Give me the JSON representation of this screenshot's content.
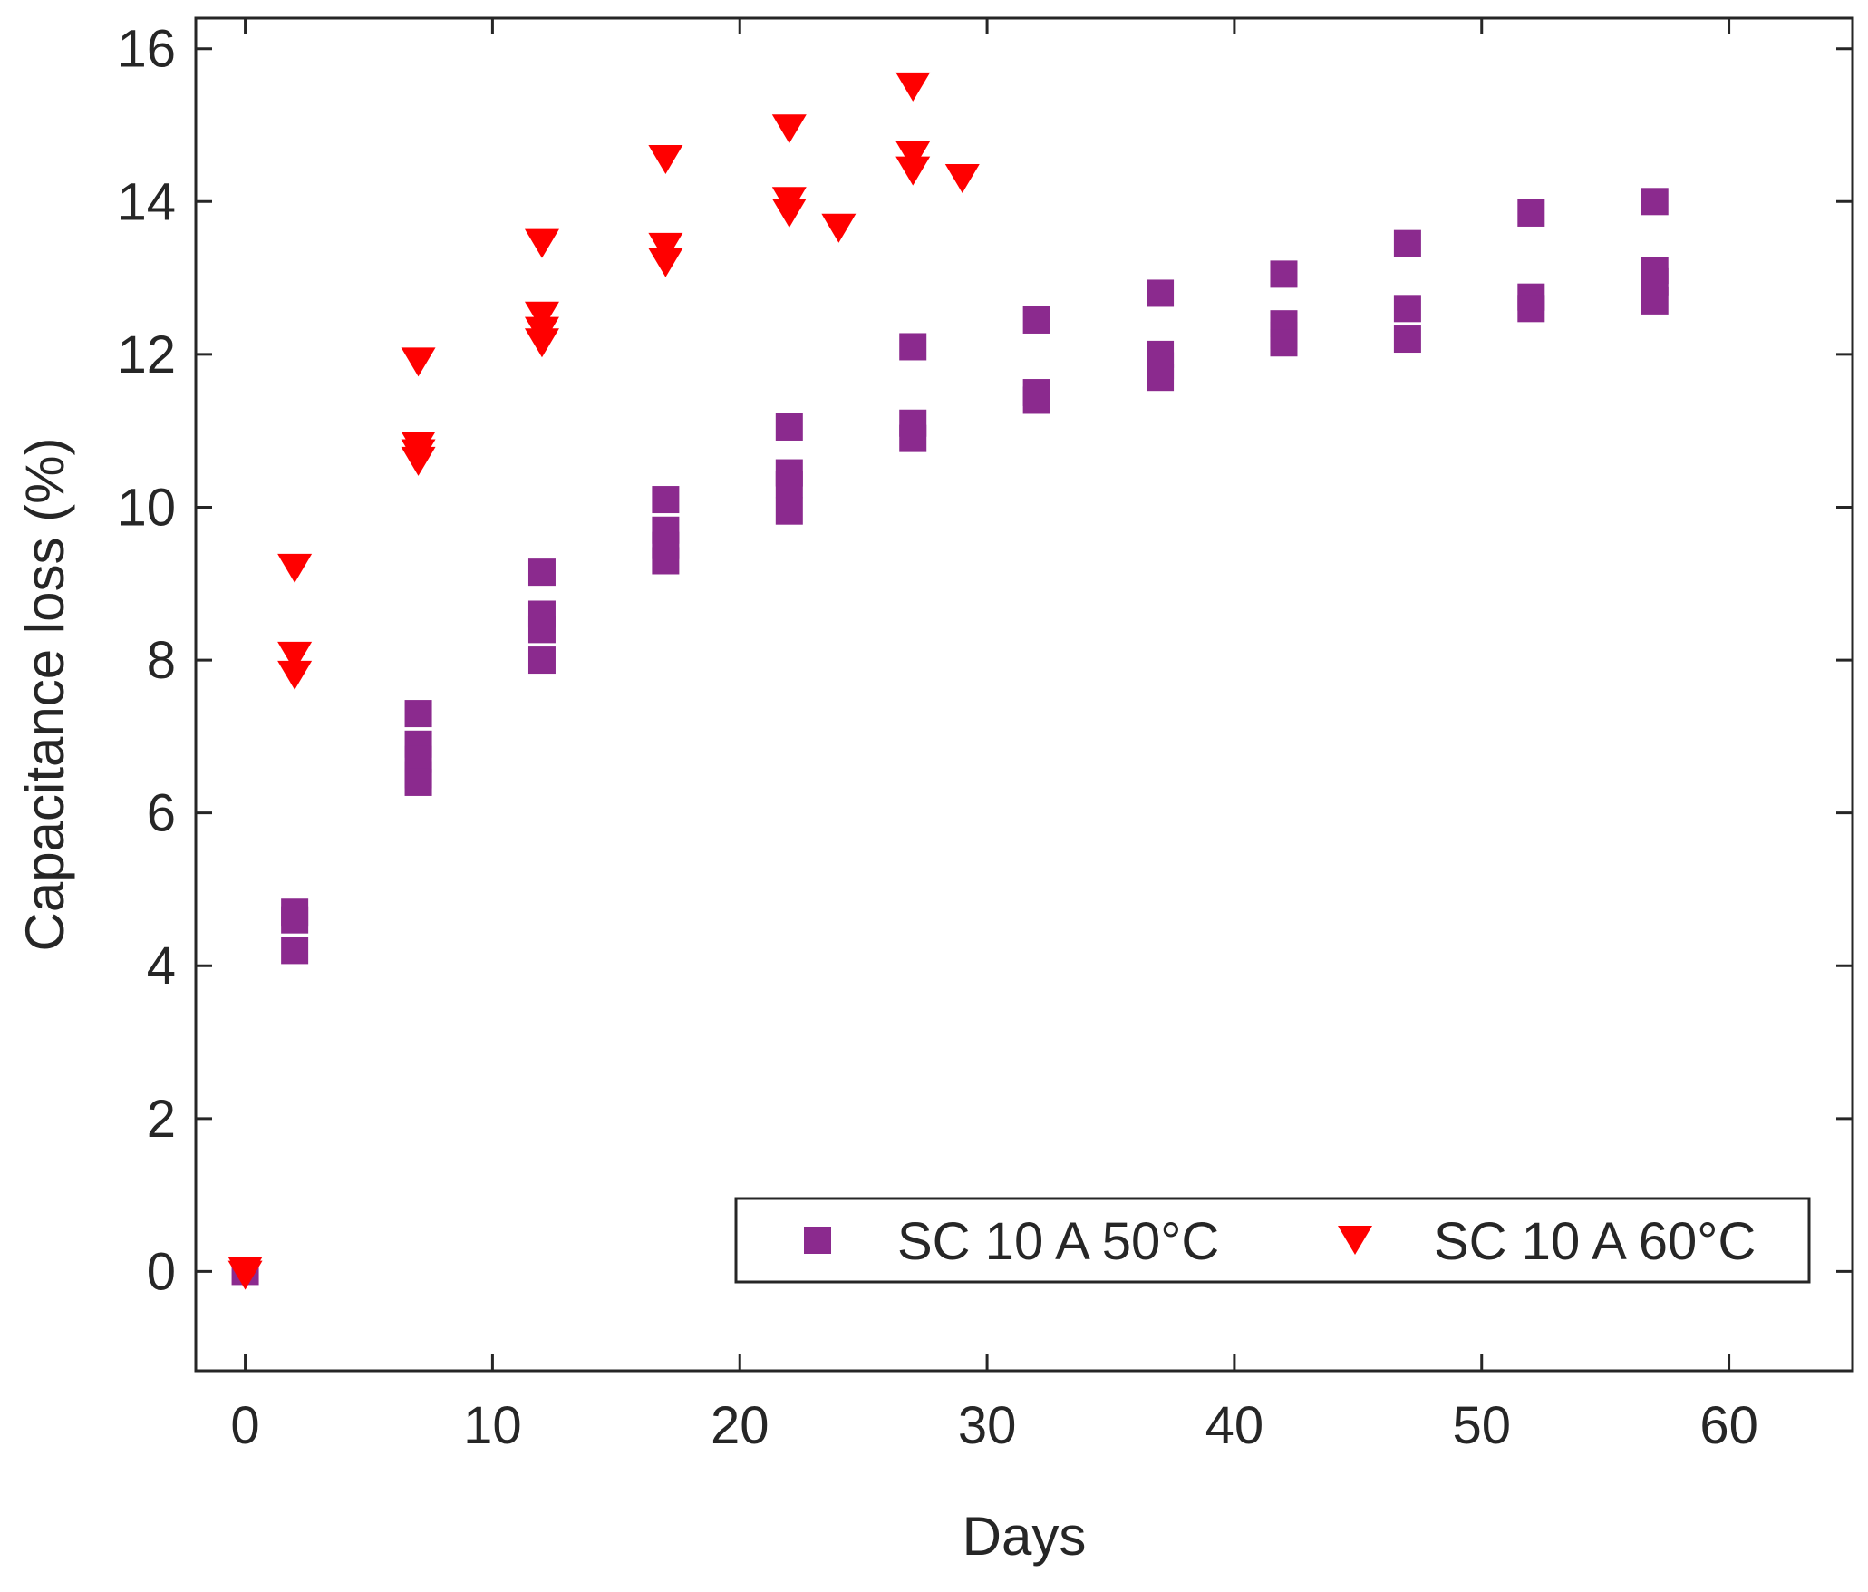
{
  "chart_data": {
    "type": "scatter",
    "title": "",
    "xlabel": "Days",
    "ylabel": "Capacitance loss (%)",
    "xlim": [
      -2,
      65
    ],
    "ylim": [
      -1.3,
      16.4
    ],
    "xticks": [
      0,
      10,
      20,
      30,
      40,
      50,
      60
    ],
    "yticks": [
      0,
      2,
      4,
      6,
      8,
      10,
      12,
      14,
      16
    ],
    "grid": false,
    "legend_position": "bottom-right",
    "series": [
      {
        "name": "SC 10 A 50°C",
        "marker": "square",
        "color": "#8b2a8e",
        "points": [
          [
            0,
            0
          ],
          [
            2,
            4.7
          ],
          [
            2,
            4.6
          ],
          [
            2,
            4.2
          ],
          [
            7,
            7.3
          ],
          [
            7,
            6.9
          ],
          [
            7,
            6.7
          ],
          [
            7,
            6.5
          ],
          [
            7,
            6.4
          ],
          [
            12,
            9.15
          ],
          [
            12,
            8.6
          ],
          [
            12,
            8.4
          ],
          [
            12,
            8.0
          ],
          [
            17,
            10.1
          ],
          [
            17,
            9.7
          ],
          [
            17,
            9.5
          ],
          [
            17,
            9.3
          ],
          [
            22,
            11.05
          ],
          [
            22,
            10.45
          ],
          [
            22,
            10.3
          ],
          [
            22,
            9.95
          ],
          [
            27,
            12.1
          ],
          [
            27,
            11.1
          ],
          [
            27,
            10.9
          ],
          [
            32,
            12.45
          ],
          [
            32,
            11.5
          ],
          [
            32,
            11.4
          ],
          [
            37,
            12.8
          ],
          [
            37,
            12.0
          ],
          [
            37,
            11.85
          ],
          [
            37,
            11.7
          ],
          [
            42,
            13.05
          ],
          [
            42,
            12.4
          ],
          [
            42,
            12.25
          ],
          [
            42,
            12.15
          ],
          [
            47,
            13.45
          ],
          [
            47,
            12.6
          ],
          [
            47,
            12.2
          ],
          [
            52,
            13.85
          ],
          [
            52,
            12.75
          ],
          [
            52,
            12.6
          ],
          [
            57,
            14.0
          ],
          [
            57,
            13.1
          ],
          [
            57,
            12.95
          ],
          [
            57,
            12.7
          ]
        ]
      },
      {
        "name": "SC 10 A 60°C",
        "marker": "triangle-down",
        "color": "#ff0000",
        "points": [
          [
            0,
            0
          ],
          [
            0,
            -0.05
          ],
          [
            2,
            9.2
          ],
          [
            2,
            8.05
          ],
          [
            2,
            7.8
          ],
          [
            7,
            11.9
          ],
          [
            7,
            10.8
          ],
          [
            7,
            10.7
          ],
          [
            7,
            10.6
          ],
          [
            12,
            13.45
          ],
          [
            12,
            12.5
          ],
          [
            12,
            12.3
          ],
          [
            12,
            12.15
          ],
          [
            17,
            14.55
          ],
          [
            17,
            13.4
          ],
          [
            17,
            13.2
          ],
          [
            22,
            14.95
          ],
          [
            22,
            14.0
          ],
          [
            22,
            13.85
          ],
          [
            24,
            13.65
          ],
          [
            27,
            15.5
          ],
          [
            27,
            14.6
          ],
          [
            27,
            14.4
          ],
          [
            29,
            14.3
          ]
        ]
      }
    ]
  }
}
